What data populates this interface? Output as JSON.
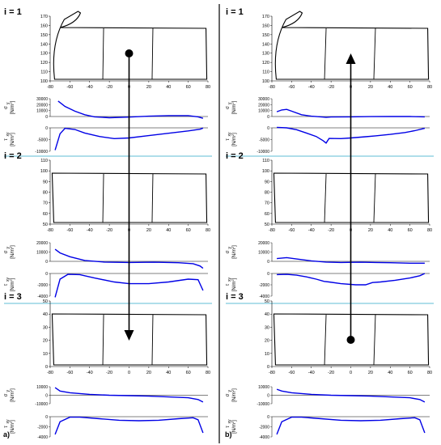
{
  "panels": [
    {
      "label": "a)",
      "arrow_direction": "down",
      "rows": [
        {
          "title": "i = 1",
          "sigma_ticks": [
            "30000",
            "20000",
            "10000",
            "0"
          ],
          "tau_ticks": [
            "0",
            "-5000",
            "-10000"
          ],
          "sigma_curve": [
            [
              -72,
              26000
            ],
            [
              -65,
              17000
            ],
            [
              -55,
              9000
            ],
            [
              -45,
              3000
            ],
            [
              -35,
              -500
            ],
            [
              -20,
              -2000
            ],
            [
              0,
              -1000
            ],
            [
              20,
              500
            ],
            [
              40,
              1500
            ],
            [
              60,
              1500
            ],
            [
              70,
              -500
            ],
            [
              75,
              -3000
            ]
          ],
          "tau_curve": [
            [
              -75,
              -9500
            ],
            [
              -70,
              -2500
            ],
            [
              -65,
              -200
            ],
            [
              -55,
              -700
            ],
            [
              -45,
              -2200
            ],
            [
              -30,
              -3700
            ],
            [
              -15,
              -4600
            ],
            [
              0,
              -4300
            ],
            [
              20,
              -3300
            ],
            [
              40,
              -2300
            ],
            [
              60,
              -1300
            ],
            [
              72,
              -600
            ],
            [
              75,
              -100
            ]
          ]
        },
        {
          "title": "i = 2",
          "sigma_ticks": [
            "20000",
            "10000",
            "0"
          ],
          "tau_ticks": [
            "0",
            "-2000",
            "-4000"
          ],
          "sigma_curve": [
            [
              -75,
              13000
            ],
            [
              -70,
              9000
            ],
            [
              -60,
              5000
            ],
            [
              -45,
              1000
            ],
            [
              -25,
              -800
            ],
            [
              0,
              -1200
            ],
            [
              25,
              -1000
            ],
            [
              50,
              -1500
            ],
            [
              65,
              -2500
            ],
            [
              72,
              -5000
            ],
            [
              75,
              -7500
            ]
          ],
          "tau_curve": [
            [
              -75,
              -4200
            ],
            [
              -70,
              -1000
            ],
            [
              -62,
              -150
            ],
            [
              -50,
              -200
            ],
            [
              -35,
              -800
            ],
            [
              -15,
              -1500
            ],
            [
              0,
              -1800
            ],
            [
              20,
              -1800
            ],
            [
              40,
              -1500
            ],
            [
              60,
              -1000
            ],
            [
              70,
              -1100
            ],
            [
              75,
              -3000
            ]
          ]
        },
        {
          "title": "i = 3",
          "sigma_ticks": [
            "10000",
            "0",
            "-10000"
          ],
          "tau_ticks": [
            "0",
            "-2000",
            "-4000"
          ],
          "sigma_curve": [
            [
              -75,
              9000
            ],
            [
              -70,
              5000
            ],
            [
              -60,
              3000
            ],
            [
              -40,
              1000
            ],
            [
              -20,
              0
            ],
            [
              0,
              -500
            ],
            [
              20,
              -1000
            ],
            [
              40,
              -2000
            ],
            [
              60,
              -3000
            ],
            [
              70,
              -5000
            ],
            [
              75,
              -8000
            ]
          ],
          "tau_curve": [
            [
              -75,
              -3500
            ],
            [
              -70,
              -1000
            ],
            [
              -60,
              -100
            ],
            [
              -50,
              -100
            ],
            [
              -30,
              -400
            ],
            [
              -10,
              -700
            ],
            [
              10,
              -800
            ],
            [
              30,
              -700
            ],
            [
              50,
              -400
            ],
            [
              65,
              -200
            ],
            [
              70,
              -600
            ],
            [
              75,
              -3200
            ]
          ]
        }
      ]
    },
    {
      "label": "b)",
      "arrow_direction": "up",
      "rows": [
        {
          "title": "i = 1",
          "sigma_ticks": [
            "30000",
            "20000",
            "10000",
            "0"
          ],
          "tau_ticks": [
            "0",
            "-5000",
            "-10000"
          ],
          "sigma_curve": [
            [
              -75,
              8000
            ],
            [
              -70,
              11000
            ],
            [
              -65,
              12000
            ],
            [
              -60,
              9000
            ],
            [
              -50,
              3000
            ],
            [
              -40,
              500
            ],
            [
              -28,
              -1000
            ],
            [
              -25,
              -1500
            ],
            [
              -20,
              -800
            ],
            [
              0,
              -500
            ],
            [
              20,
              -200
            ],
            [
              40,
              0
            ],
            [
              60,
              0
            ],
            [
              75,
              -500
            ]
          ],
          "tau_curve": [
            [
              -75,
              200
            ],
            [
              -65,
              0
            ],
            [
              -55,
              -800
            ],
            [
              -45,
              -2200
            ],
            [
              -35,
              -3700
            ],
            [
              -28,
              -5500
            ],
            [
              -25,
              -6500
            ],
            [
              -22,
              -4500
            ],
            [
              -10,
              -4600
            ],
            [
              0,
              -4300
            ],
            [
              15,
              -3800
            ],
            [
              25,
              -3400
            ],
            [
              40,
              -2800
            ],
            [
              55,
              -2000
            ],
            [
              65,
              -1200
            ],
            [
              75,
              -200
            ]
          ]
        },
        {
          "title": "i = 2",
          "sigma_ticks": [
            "20000",
            "10000",
            "0"
          ],
          "tau_ticks": [
            "0",
            "-2000",
            "-4000"
          ],
          "sigma_curve": [
            [
              -75,
              3000
            ],
            [
              -65,
              4000
            ],
            [
              -55,
              2500
            ],
            [
              -40,
              500
            ],
            [
              -25,
              -800
            ],
            [
              -10,
              -1200
            ],
            [
              10,
              -1000
            ],
            [
              25,
              -1200
            ],
            [
              40,
              -1500
            ],
            [
              60,
              -2000
            ],
            [
              75,
              -2000
            ]
          ],
          "tau_curve": [
            [
              -75,
              -200
            ],
            [
              -65,
              -150
            ],
            [
              -55,
              -300
            ],
            [
              -45,
              -600
            ],
            [
              -35,
              -1000
            ],
            [
              -27,
              -1400
            ],
            [
              -22,
              -1500
            ],
            [
              -10,
              -1800
            ],
            [
              5,
              -2000
            ],
            [
              15,
              -2000
            ],
            [
              22,
              -1600
            ],
            [
              30,
              -1500
            ],
            [
              45,
              -1200
            ],
            [
              60,
              -800
            ],
            [
              70,
              -400
            ],
            [
              75,
              0
            ]
          ]
        },
        {
          "title": "i = 3",
          "sigma_ticks": [
            "10000",
            "0",
            "-10000"
          ],
          "tau_ticks": [
            "0",
            "-2000",
            "-4000"
          ],
          "sigma_curve": [
            [
              -75,
              7000
            ],
            [
              -70,
              5000
            ],
            [
              -60,
              3000
            ],
            [
              -40,
              1000
            ],
            [
              -20,
              0
            ],
            [
              0,
              -500
            ],
            [
              20,
              -1000
            ],
            [
              40,
              -2000
            ],
            [
              60,
              -3000
            ],
            [
              70,
              -5000
            ],
            [
              75,
              -8000
            ]
          ],
          "tau_curve": [
            [
              -75,
              -3500
            ],
            [
              -70,
              -1000
            ],
            [
              -60,
              -100
            ],
            [
              -50,
              -100
            ],
            [
              -30,
              -400
            ],
            [
              -10,
              -700
            ],
            [
              10,
              -800
            ],
            [
              30,
              -700
            ],
            [
              50,
              -400
            ],
            [
              65,
              -200
            ],
            [
              70,
              -600
            ],
            [
              75,
              -3200
            ]
          ]
        }
      ]
    }
  ],
  "shape_yticks": [
    [
      "170",
      "160",
      "150",
      "140",
      "130",
      "120",
      "110",
      "100"
    ],
    [
      "110",
      "100",
      "90",
      "80",
      "70",
      "60",
      "50"
    ],
    [
      "50",
      "40",
      "30",
      "20",
      "10",
      "0"
    ]
  ],
  "shape_xticks": [
    "-80",
    "-60",
    "-40",
    "-20",
    "0",
    "20",
    "40",
    "60",
    "80"
  ],
  "sigma_label": "σ",
  "sigma_sub": "y",
  "tau_label": "τ",
  "tau_sub": "xy",
  "unit_label": "[N/m",
  "unit_sup": "2",
  "unit_close": "]",
  "colors": {
    "curve": "#0000e6",
    "separator": "#2aa6c6",
    "shape": "#000000",
    "divider": "#000000"
  }
}
